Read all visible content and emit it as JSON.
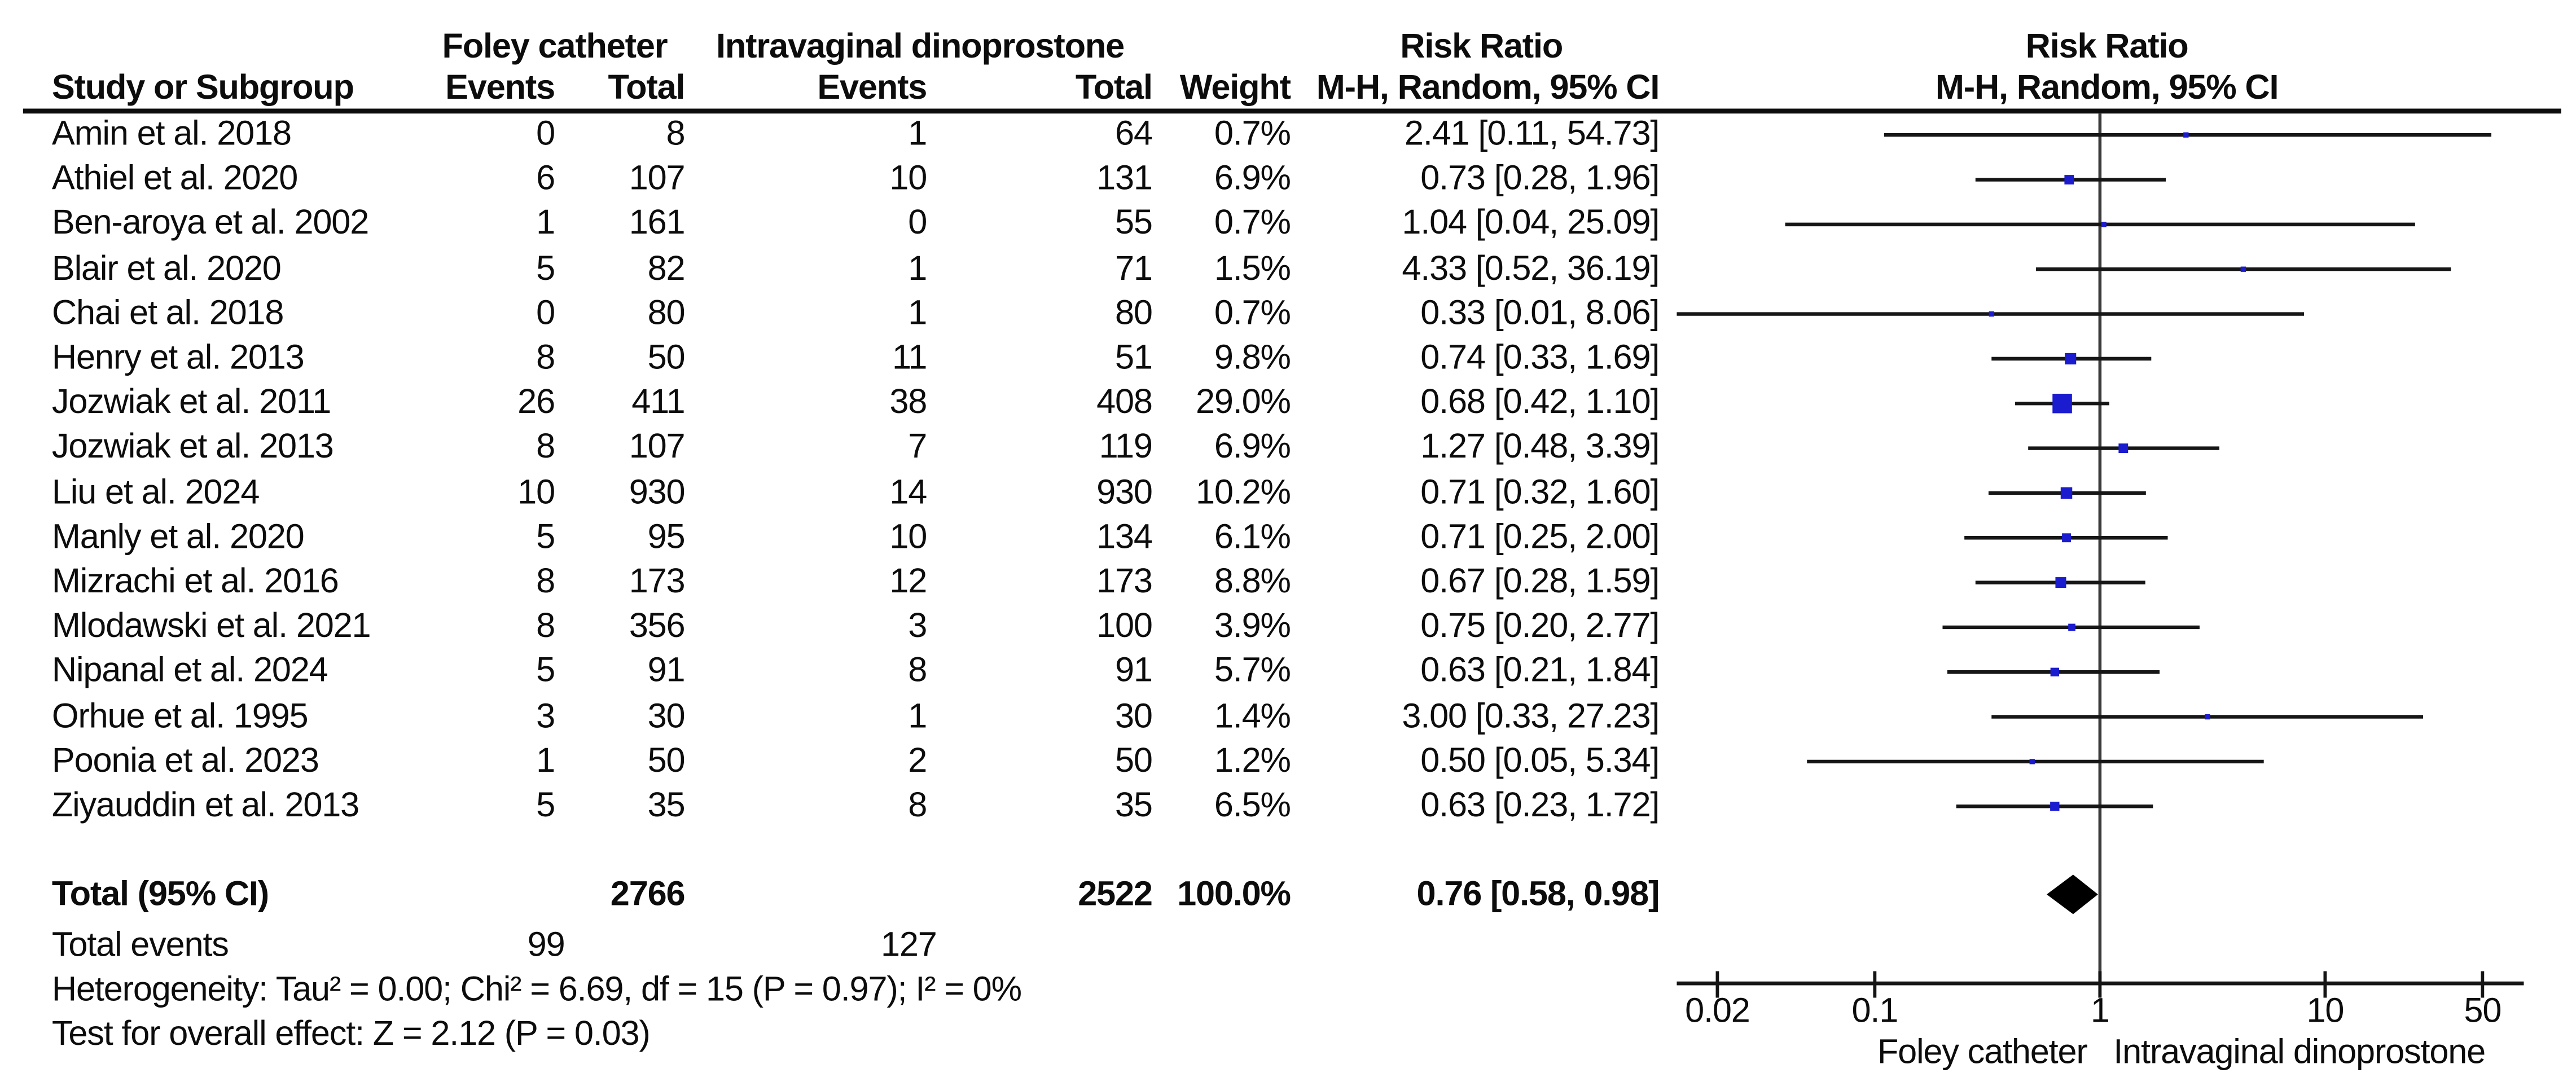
{
  "header": {
    "group1": "Foley catheter",
    "group2": "Intravaginal dinoprostone",
    "risk_ratio": "Risk Ratio",
    "mh_random": "M-H, Random, 95% CI",
    "study": "Study or Subgroup",
    "events": "Events",
    "total": "Total",
    "weight": "Weight"
  },
  "chart_data": {
    "type": "scatter",
    "subtype": "forest-plot-meta-analysis",
    "effect_measure": "Risk Ratio",
    "method": "M-H, Random, 95% CI",
    "x_scale": "log10",
    "x_ticks": [
      "0.02",
      "0.1",
      "1",
      "10",
      "50"
    ],
    "x_tick_values": [
      0.02,
      0.1,
      1,
      10,
      50
    ],
    "x_axis_range": [
      0.013,
      77
    ],
    "favours_left_label": "Foley catheter",
    "favours_right_label": "Intravaginal dinoprostone",
    "marker_color": "#1b1bcf",
    "line_color": "#161616",
    "diamond_color": "#000000",
    "grid": false,
    "studies": [
      {
        "name": "Amin et al. 2018",
        "events1": "0",
        "total1": "8",
        "events2": "1",
        "total2": "64",
        "weight": "0.7%",
        "weight_value": 0.7,
        "rr": 2.41,
        "ci_low": 0.11,
        "ci_high": 54.73,
        "rr_text": "2.41 [0.11, 54.73]"
      },
      {
        "name": "Athiel et al. 2020",
        "events1": "6",
        "total1": "107",
        "events2": "10",
        "total2": "131",
        "weight": "6.9%",
        "weight_value": 6.9,
        "rr": 0.73,
        "ci_low": 0.28,
        "ci_high": 1.96,
        "rr_text": "0.73 [0.28, 1.96]"
      },
      {
        "name": "Ben-aroya et al. 2002",
        "events1": "1",
        "total1": "161",
        "events2": "0",
        "total2": "55",
        "weight": "0.7%",
        "weight_value": 0.7,
        "rr": 1.04,
        "ci_low": 0.04,
        "ci_high": 25.09,
        "rr_text": "1.04 [0.04, 25.09]"
      },
      {
        "name": "Blair et al. 2020",
        "events1": "5",
        "total1": "82",
        "events2": "1",
        "total2": "71",
        "weight": "1.5%",
        "weight_value": 1.5,
        "rr": 4.33,
        "ci_low": 0.52,
        "ci_high": 36.19,
        "rr_text": "4.33 [0.52, 36.19]"
      },
      {
        "name": "Chai et al. 2018",
        "events1": "0",
        "total1": "80",
        "events2": "1",
        "total2": "80",
        "weight": "0.7%",
        "weight_value": 0.7,
        "rr": 0.33,
        "ci_low": 0.01,
        "ci_high": 8.06,
        "rr_text": "0.33 [0.01, 8.06]"
      },
      {
        "name": "Henry et al. 2013",
        "events1": "8",
        "total1": "50",
        "events2": "11",
        "total2": "51",
        "weight": "9.8%",
        "weight_value": 9.8,
        "rr": 0.74,
        "ci_low": 0.33,
        "ci_high": 1.69,
        "rr_text": "0.74 [0.33, 1.69]"
      },
      {
        "name": "Jozwiak et al. 2011",
        "events1": "26",
        "total1": "411",
        "events2": "38",
        "total2": "408",
        "weight": "29.0%",
        "weight_value": 29.0,
        "rr": 0.68,
        "ci_low": 0.42,
        "ci_high": 1.1,
        "rr_text": "0.68 [0.42, 1.10]"
      },
      {
        "name": "Jozwiak et al. 2013",
        "events1": "8",
        "total1": "107",
        "events2": "7",
        "total2": "119",
        "weight": "6.9%",
        "weight_value": 6.9,
        "rr": 1.27,
        "ci_low": 0.48,
        "ci_high": 3.39,
        "rr_text": "1.27 [0.48, 3.39]"
      },
      {
        "name": "Liu et al. 2024",
        "events1": "10",
        "total1": "930",
        "events2": "14",
        "total2": "930",
        "weight": "10.2%",
        "weight_value": 10.2,
        "rr": 0.71,
        "ci_low": 0.32,
        "ci_high": 1.6,
        "rr_text": "0.71 [0.32, 1.60]"
      },
      {
        "name": "Manly et al. 2020",
        "events1": "5",
        "total1": "95",
        "events2": "10",
        "total2": "134",
        "weight": "6.1%",
        "weight_value": 6.1,
        "rr": 0.71,
        "ci_low": 0.25,
        "ci_high": 2.0,
        "rr_text": "0.71 [0.25, 2.00]"
      },
      {
        "name": "Mizrachi et al. 2016",
        "events1": "8",
        "total1": "173",
        "events2": "12",
        "total2": "173",
        "weight": "8.8%",
        "weight_value": 8.8,
        "rr": 0.67,
        "ci_low": 0.28,
        "ci_high": 1.59,
        "rr_text": "0.67 [0.28, 1.59]"
      },
      {
        "name": "Mlodawski et al. 2021",
        "events1": "8",
        "total1": "356",
        "events2": "3",
        "total2": "100",
        "weight": "3.9%",
        "weight_value": 3.9,
        "rr": 0.75,
        "ci_low": 0.2,
        "ci_high": 2.77,
        "rr_text": "0.75 [0.20, 2.77]"
      },
      {
        "name": "Nipanal et al. 2024",
        "events1": "5",
        "total1": "91",
        "events2": "8",
        "total2": "91",
        "weight": "5.7%",
        "weight_value": 5.7,
        "rr": 0.63,
        "ci_low": 0.21,
        "ci_high": 1.84,
        "rr_text": "0.63 [0.21, 1.84]"
      },
      {
        "name": "Orhue et al. 1995",
        "events1": "3",
        "total1": "30",
        "events2": "1",
        "total2": "30",
        "weight": "1.4%",
        "weight_value": 1.4,
        "rr": 3.0,
        "ci_low": 0.33,
        "ci_high": 27.23,
        "rr_text": "3.00 [0.33, 27.23]"
      },
      {
        "name": "Poonia et al. 2023",
        "events1": "1",
        "total1": "50",
        "events2": "2",
        "total2": "50",
        "weight": "1.2%",
        "weight_value": 1.2,
        "rr": 0.5,
        "ci_low": 0.05,
        "ci_high": 5.34,
        "rr_text": "0.50 [0.05, 5.34]"
      },
      {
        "name": "Ziyauddin et al. 2013",
        "events1": "5",
        "total1": "35",
        "events2": "8",
        "total2": "35",
        "weight": "6.5%",
        "weight_value": 6.5,
        "rr": 0.63,
        "ci_low": 0.23,
        "ci_high": 1.72,
        "rr_text": "0.63 [0.23, 1.72]"
      }
    ],
    "total": {
      "label": "Total (95% CI)",
      "total1": "2766",
      "total2": "2522",
      "weight": "100.0%",
      "rr": 0.76,
      "ci_low": 0.58,
      "ci_high": 0.98,
      "rr_text": "0.76 [0.58, 0.98]"
    },
    "total_events": {
      "label": "Total events",
      "events1": "99",
      "events2": "127"
    },
    "heterogeneity": "Heterogeneity: Tau² = 0.00; Chi² = 6.69, df = 15 (P = 0.97); I² = 0%",
    "overall_effect": "Test for overall effect: Z = 2.12 (P = 0.03)"
  }
}
